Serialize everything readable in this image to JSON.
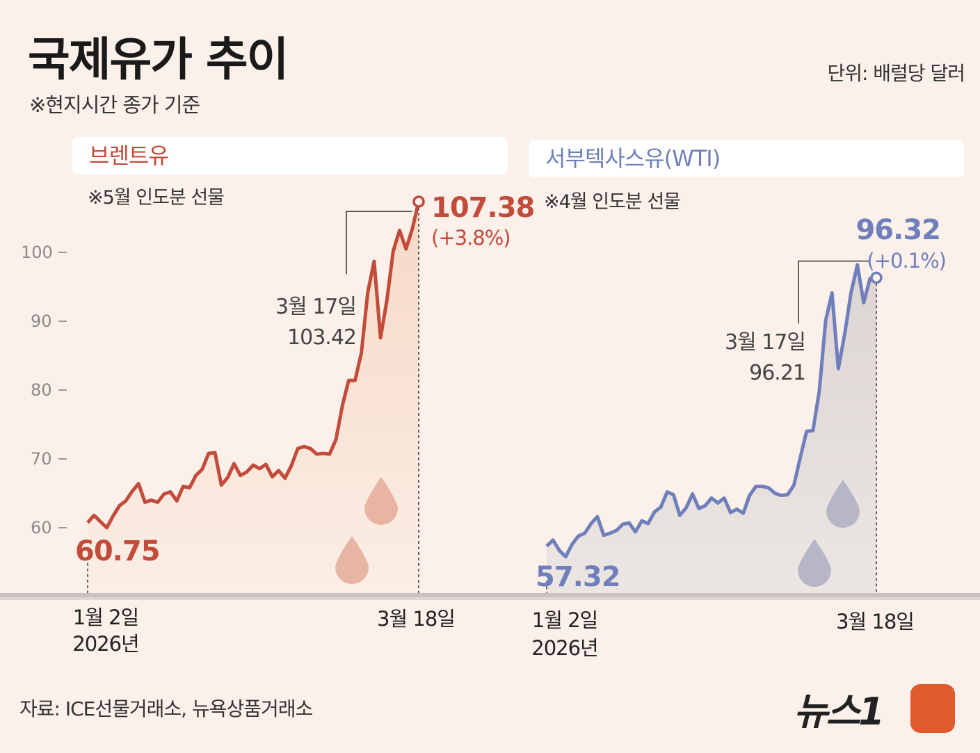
{
  "title": "국제유가 추이",
  "subtitle": "※현지시간 종가 기준",
  "unit": "단위: 배럴당 달러",
  "source": "자료: ICE선물거래소, 뉴욕상품거래소",
  "logo_text": "뉴스1",
  "colors": {
    "brent": "#c24b3a",
    "wti": "#6f7fbb",
    "brent_fill": "#f8e1d3",
    "wti_fill": "#e3dcd8",
    "background": "#fbf0ea"
  },
  "chart_data": [
    {
      "type": "line",
      "name": "브렌트유",
      "note": "※5월 인도분 선물",
      "ylim": [
        50,
        110
      ],
      "yticks": [
        60,
        70,
        80,
        90,
        100
      ],
      "start_label": "1월 2일",
      "start_year": "2026년",
      "end_label": "3월 18일",
      "start_value": "60.75",
      "end_value": "107.38",
      "end_change": "(+3.8%)",
      "mid_date": "3월 17일",
      "mid_value": "103.42",
      "values": [
        60.75,
        61.8,
        60.9,
        60.0,
        61.7,
        63.2,
        63.9,
        65.3,
        66.4,
        63.7,
        64.0,
        63.7,
        64.9,
        65.2,
        63.9,
        66.0,
        65.8,
        67.6,
        68.5,
        70.8,
        70.9,
        66.2,
        67.3,
        69.3,
        67.6,
        68.1,
        69.1,
        68.6,
        69.2,
        67.4,
        68.3,
        67.2,
        69.0,
        71.5,
        71.8,
        71.5,
        70.7,
        70.8,
        70.7,
        72.8,
        77.7,
        81.4,
        81.4,
        85.4,
        94.2,
        98.7,
        87.6,
        93.0,
        100.2,
        103.2,
        100.5,
        103.42,
        107.38
      ]
    },
    {
      "type": "line",
      "name": "서부텍사스유(WTI)",
      "note": "※4월 인도분 선물",
      "ylim": [
        50,
        110
      ],
      "start_label": "1월 2일",
      "start_year": "2026년",
      "end_label": "3월 18일",
      "start_value": "57.32",
      "end_value": "96.32",
      "end_change": "(+0.1%)",
      "mid_date": "3월 17일",
      "mid_value": "96.21",
      "values": [
        57.32,
        58.2,
        56.7,
        55.8,
        57.6,
        58.8,
        59.2,
        60.6,
        61.6,
        58.9,
        59.2,
        59.6,
        60.5,
        60.7,
        59.4,
        61.0,
        60.6,
        62.3,
        63.0,
        65.2,
        64.8,
        61.8,
        62.9,
        64.9,
        62.8,
        63.2,
        64.3,
        63.6,
        64.3,
        62.2,
        62.7,
        62.1,
        64.7,
        66.0,
        66.0,
        65.8,
        65.0,
        64.7,
        64.8,
        66.2,
        70.2,
        74.0,
        74.1,
        79.9,
        90.1,
        94.1,
        83.1,
        88.1,
        94.1,
        98.2,
        92.7,
        96.21,
        96.32
      ]
    }
  ]
}
